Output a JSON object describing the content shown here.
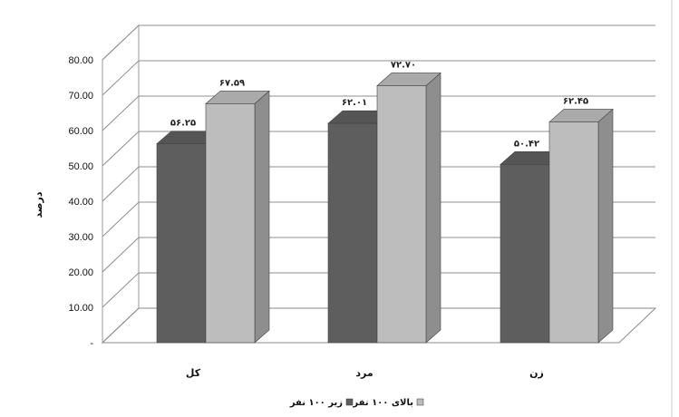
{
  "chart_data": {
    "type": "bar",
    "three_d": true,
    "categories": [
      "کل",
      "مرد",
      "زن"
    ],
    "series": [
      {
        "name": "زیر ۱۰۰ نفر",
        "values": [
          56.25,
          62.01,
          50.42
        ],
        "labels": [
          "۵۶.۲۵",
          "۶۲.۰۱",
          "۵۰.۴۲"
        ],
        "color": "#5e5e5e"
      },
      {
        "name": "بالای ۱۰۰ نفر",
        "values": [
          67.59,
          72.7,
          62.45
        ],
        "labels": [
          "۶۷.۵۹",
          "۷۲.۷۰",
          "۶۲.۴۵"
        ],
        "color": "#bdbdbd"
      }
    ],
    "ylabel": "درصد",
    "ylim": [
      0,
      80
    ],
    "yticks": [
      "-",
      "10.00",
      "20.00",
      "30.00",
      "40.00",
      "50.00",
      "60.00",
      "70.00",
      "80.00"
    ],
    "grid": true,
    "legend_position": "bottom"
  }
}
